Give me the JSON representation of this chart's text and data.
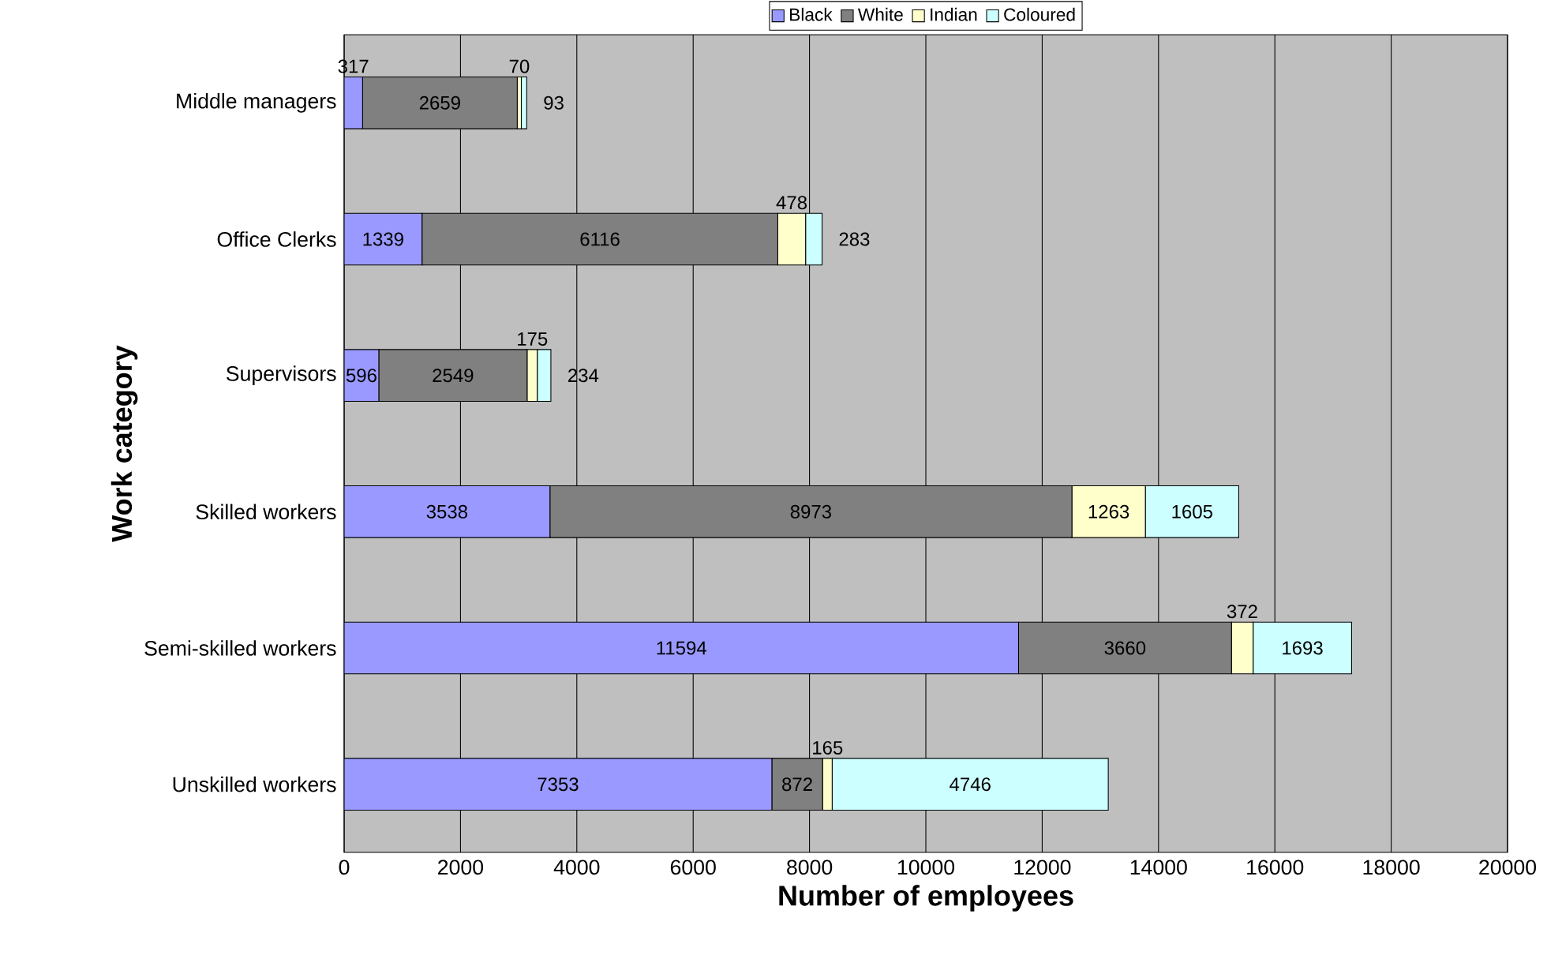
{
  "chart_data": {
    "type": "bar",
    "orientation": "horizontal",
    "stacked": true,
    "xlabel": "Number of employees",
    "ylabel": "Work category",
    "categories": [
      "Middle managers",
      "Office Clerks",
      "Supervisors",
      "Skilled workers",
      "Semi-skilled workers",
      "Unskilled workers"
    ],
    "series": [
      {
        "name": "Black",
        "color": "#9999ff",
        "values": [
          317,
          1339,
          596,
          3538,
          11594,
          7353
        ]
      },
      {
        "name": "White",
        "color": "#808080",
        "values": [
          2659,
          6116,
          2549,
          8973,
          3660,
          872
        ]
      },
      {
        "name": "Indian",
        "color": "#ffffcc",
        "values": [
          70,
          478,
          175,
          1263,
          372,
          165
        ]
      },
      {
        "name": "Coloured",
        "color": "#ccffff",
        "values": [
          93,
          283,
          234,
          1605,
          1693,
          4746
        ]
      }
    ],
    "xlim": [
      0,
      20000
    ],
    "xticks": [
      0,
      2000,
      4000,
      6000,
      8000,
      10000,
      12000,
      14000,
      16000,
      18000,
      20000
    ],
    "grid": "x",
    "legend": "top",
    "data_labels": true
  }
}
